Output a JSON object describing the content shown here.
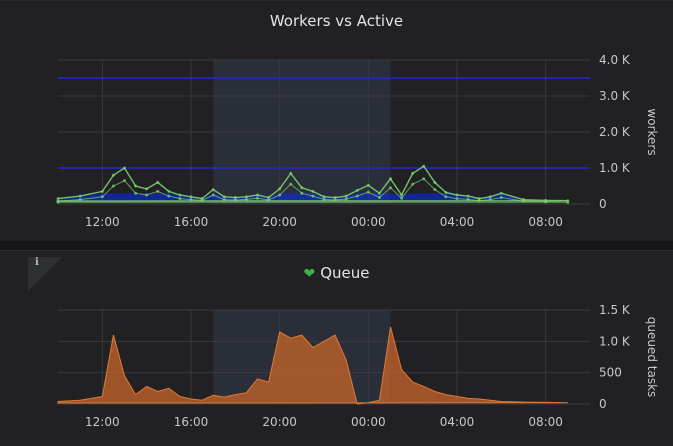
{
  "panels": [
    {
      "title": "Workers vs Active",
      "ylabel": "workers",
      "yticks": [
        "4.0 K",
        "3.0 K",
        "2.0 K",
        "1.0 K",
        "0"
      ],
      "xticks": [
        "12:00",
        "16:00",
        "20:00",
        "00:00",
        "04:00",
        "08:00"
      ]
    },
    {
      "title": "Queue",
      "icon": "heart-icon",
      "info_icon": "info-icon",
      "ylabel": "queued tasks",
      "yticks": [
        "1.5 K",
        "1.0 K",
        "500",
        "0"
      ],
      "xticks": [
        "12:00",
        "16:00",
        "20:00",
        "00:00",
        "04:00",
        "08:00"
      ]
    }
  ],
  "colors": {
    "background": "#212124",
    "grid": "#3a3a3e",
    "highlight_band": "#2a2e38",
    "workers_threshold_line": "#2525d6",
    "workers_area": "#0a2aff",
    "active_lines": "#7fd36f",
    "queue_area": "#c8662a"
  },
  "chart_data": [
    {
      "type": "line",
      "title": "Workers vs Active",
      "ylabel": "workers",
      "ylim": [
        0,
        4000
      ],
      "x": [
        "10:00",
        "11:00",
        "12:00",
        "12:30",
        "13:00",
        "13:30",
        "14:00",
        "14:30",
        "15:00",
        "15:30",
        "16:00",
        "16:30",
        "17:00",
        "17:30",
        "18:00",
        "18:30",
        "19:00",
        "19:30",
        "20:00",
        "20:30",
        "21:00",
        "21:30",
        "22:00",
        "22:30",
        "23:00",
        "23:30",
        "00:00",
        "00:30",
        "01:00",
        "01:30",
        "02:00",
        "02:30",
        "03:00",
        "03:30",
        "04:00",
        "04:30",
        "05:00",
        "05:30",
        "06:00",
        "07:00",
        "08:00",
        "09:00",
        "10:00"
      ],
      "series": [
        {
          "values": [
            150,
            220,
            350,
            800,
            1000,
            500,
            420,
            600,
            350,
            250,
            200,
            150,
            400,
            200,
            180,
            200,
            250,
            180,
            420,
            850,
            450,
            350,
            200,
            180,
            220,
            380,
            520,
            300,
            700,
            250,
            850,
            1050,
            600,
            320,
            250,
            220,
            150,
            200,
            300,
            120,
            100,
            90,
            80
          ]
        },
        {
          "values": [
            80,
            120,
            200,
            500,
            650,
            300,
            250,
            350,
            220,
            150,
            120,
            100,
            250,
            120,
            110,
            130,
            160,
            110,
            250,
            550,
            300,
            220,
            130,
            110,
            140,
            220,
            330,
            180,
            450,
            160,
            550,
            700,
            400,
            200,
            150,
            130,
            90,
            120,
            180,
            80,
            60,
            50,
            50
          ]
        }
      ],
      "thresholds": [
        1000,
        3500
      ]
    },
    {
      "type": "area",
      "title": "Queue",
      "ylabel": "queued tasks",
      "ylim": [
        0,
        1500
      ],
      "x": [
        "10:00",
        "11:00",
        "12:00",
        "12:30",
        "13:00",
        "13:30",
        "14:00",
        "14:30",
        "15:00",
        "15:30",
        "16:00",
        "16:30",
        "17:00",
        "17:30",
        "18:00",
        "18:30",
        "19:00",
        "19:30",
        "20:00",
        "20:30",
        "21:00",
        "21:30",
        "22:00",
        "22:30",
        "23:00",
        "23:30",
        "00:00",
        "00:30",
        "01:00",
        "01:30",
        "02:00",
        "02:30",
        "03:00",
        "03:30",
        "04:00",
        "04:30",
        "05:00",
        "05:30",
        "06:00",
        "07:00",
        "08:00",
        "09:00",
        "10:00"
      ],
      "series": [
        {
          "values": [
            40,
            60,
            120,
            1100,
            450,
            150,
            280,
            200,
            250,
            120,
            80,
            60,
            140,
            110,
            150,
            180,
            400,
            350,
            1150,
            1050,
            1100,
            900,
            1000,
            1100,
            700,
            0,
            20,
            60,
            1230,
            550,
            350,
            280,
            200,
            150,
            120,
            90,
            80,
            60,
            40,
            30,
            25,
            20,
            15
          ]
        }
      ]
    }
  ]
}
